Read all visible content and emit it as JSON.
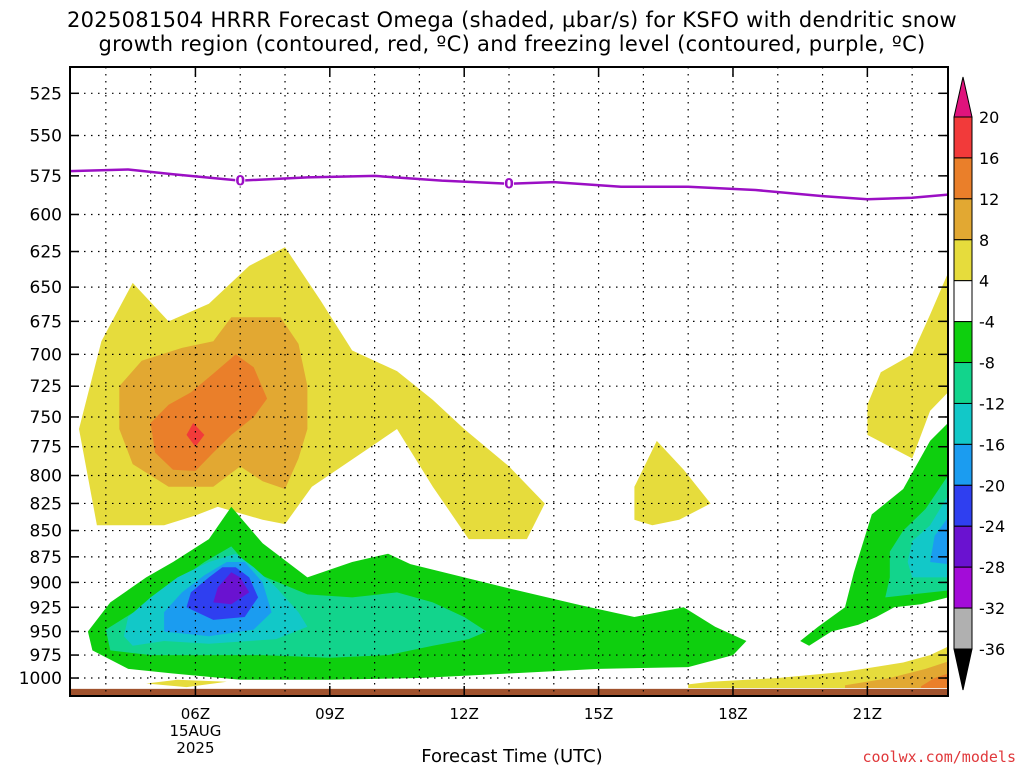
{
  "title": {
    "line1": "2025081504 HRRR Forecast Omega (shaded, µbar/s) for KSFO with dendritic snow",
    "line2": "growth region (contoured, red, ºC) and freezing level (contoured, purple, ºC)"
  },
  "xlabel": "Forecast Time (UTC)",
  "credit": "coolwx.com/models",
  "chart_data": {
    "type": "heatmap",
    "x_axis": {
      "ticks": [
        "06Z",
        "09Z",
        "12Z",
        "15Z",
        "18Z",
        "21Z"
      ],
      "date_label": [
        "15AUG",
        "2025"
      ],
      "range_hours": [
        3.2,
        22.8
      ]
    },
    "y_axis": {
      "ticks": [
        525,
        550,
        575,
        600,
        625,
        650,
        675,
        700,
        725,
        750,
        775,
        800,
        825,
        850,
        875,
        900,
        925,
        950,
        975,
        1000
      ],
      "range": [
        510,
        1020
      ],
      "scale": "log-pressure",
      "units": "hPa"
    },
    "grid": true,
    "colorbar": {
      "placement": "right",
      "labels": [
        "20",
        "16",
        "12",
        "8",
        "4",
        "-4",
        "-8",
        "-12",
        "-16",
        "-20",
        "-24",
        "-28",
        "-32",
        "-36"
      ],
      "levels": [
        {
          "min": 16,
          "max": 20,
          "color": "#f23a3a"
        },
        {
          "min": 12,
          "max": 16,
          "color": "#ea7f2a"
        },
        {
          "min": 8,
          "max": 12,
          "color": "#e2a832"
        },
        {
          "min": 4,
          "max": 8,
          "color": "#e6dc3c"
        },
        {
          "min": -4,
          "max": 4,
          "color": "#ffffff"
        },
        {
          "min": -8,
          "max": -4,
          "color": "#0ecf0e"
        },
        {
          "min": -12,
          "max": -8,
          "color": "#12d48c"
        },
        {
          "min": -16,
          "max": -12,
          "color": "#12c8c8"
        },
        {
          "min": -20,
          "max": -16,
          "color": "#1b9cf0"
        },
        {
          "min": -24,
          "max": -20,
          "color": "#2f3ff0"
        },
        {
          "min": -28,
          "max": -24,
          "color": "#6a12d0"
        },
        {
          "min": -32,
          "max": -28,
          "color": "#a30cd8"
        },
        {
          "min": -36,
          "max": -32,
          "color": "#b0b0b0"
        }
      ],
      "over_color": "#e0137c",
      "under_color": "#000000"
    },
    "freezing_level": {
      "color": "#9b0fc4",
      "contour_label": "0",
      "label_hours": [
        7.0,
        13.0
      ],
      "points": [
        [
          3.2,
          572
        ],
        [
          4.5,
          571
        ],
        [
          5.5,
          574
        ],
        [
          7.0,
          578
        ],
        [
          8.5,
          576
        ],
        [
          10.0,
          575
        ],
        [
          11.5,
          578
        ],
        [
          13.0,
          580
        ],
        [
          14.0,
          579
        ],
        [
          15.5,
          582
        ],
        [
          17.0,
          582
        ],
        [
          18.5,
          584
        ],
        [
          20.0,
          588
        ],
        [
          21.0,
          590
        ],
        [
          22.0,
          589
        ],
        [
          22.8,
          587
        ]
      ]
    },
    "omega_regions": [
      {
        "fill": "#e6dc3c",
        "points": [
          [
            5.3,
            845
          ],
          [
            6.0,
            836
          ],
          [
            6.5,
            828
          ],
          [
            7.5,
            840
          ],
          [
            8.0,
            844
          ],
          [
            8.6,
            810
          ],
          [
            10.5,
            760
          ],
          [
            11.3,
            810
          ],
          [
            12.1,
            858
          ],
          [
            13.4,
            858
          ],
          [
            13.8,
            825
          ],
          [
            13.0,
            792
          ],
          [
            12.0,
            760
          ],
          [
            11.3,
            736
          ],
          [
            10.5,
            713
          ],
          [
            9.5,
            697
          ],
          [
            8.8,
            660
          ],
          [
            8.0,
            622
          ],
          [
            7.2,
            635
          ],
          [
            6.3,
            662
          ],
          [
            5.4,
            675
          ],
          [
            4.6,
            647
          ],
          [
            3.9,
            690
          ],
          [
            3.4,
            760
          ],
          [
            3.8,
            845
          ]
        ]
      },
      {
        "fill": "#e6dc3c",
        "points": [
          [
            16.2,
            845
          ],
          [
            16.8,
            840
          ],
          [
            17.5,
            825
          ],
          [
            16.9,
            795
          ],
          [
            16.3,
            770
          ],
          [
            15.8,
            810
          ],
          [
            15.8,
            840
          ]
        ]
      },
      {
        "fill": "#e6dc3c",
        "points": [
          [
            22.0,
            785
          ],
          [
            22.4,
            745
          ],
          [
            22.8,
            730
          ],
          [
            22.8,
            640
          ],
          [
            22.4,
            670
          ],
          [
            22.0,
            700
          ],
          [
            21.3,
            714
          ],
          [
            21.0,
            740
          ],
          [
            21.0,
            765
          ]
        ]
      },
      {
        "fill": "#e2a832",
        "points": [
          [
            5.4,
            810
          ],
          [
            6.4,
            810
          ],
          [
            7.0,
            792
          ],
          [
            7.5,
            805
          ],
          [
            8.0,
            812
          ],
          [
            8.3,
            785
          ],
          [
            8.5,
            760
          ],
          [
            8.5,
            725
          ],
          [
            8.3,
            692
          ],
          [
            7.9,
            672
          ],
          [
            6.8,
            672
          ],
          [
            6.4,
            690
          ],
          [
            5.7,
            695
          ],
          [
            4.8,
            705
          ],
          [
            4.3,
            725
          ],
          [
            4.3,
            760
          ],
          [
            4.6,
            790
          ]
        ]
      },
      {
        "fill": "#ea7f2a",
        "points": [
          [
            5.5,
            795
          ],
          [
            6.0,
            796
          ],
          [
            6.4,
            780
          ],
          [
            6.8,
            765
          ],
          [
            7.3,
            750
          ],
          [
            7.6,
            735
          ],
          [
            7.3,
            710
          ],
          [
            6.9,
            700
          ],
          [
            6.4,
            715
          ],
          [
            5.9,
            730
          ],
          [
            5.4,
            740
          ],
          [
            5.0,
            755
          ],
          [
            5.1,
            780
          ]
        ]
      },
      {
        "fill": "#f23a3a",
        "points": [
          [
            6.0,
            775
          ],
          [
            6.2,
            765
          ],
          [
            5.95,
            755
          ],
          [
            5.8,
            765
          ]
        ]
      },
      {
        "fill": "#0ecf0e",
        "points": [
          [
            3.7,
            970
          ],
          [
            3.6,
            950
          ],
          [
            4.1,
            920
          ],
          [
            4.9,
            895
          ],
          [
            5.5,
            880
          ],
          [
            6.3,
            858
          ],
          [
            6.8,
            828
          ],
          [
            7.5,
            862
          ],
          [
            8.5,
            895
          ],
          [
            9.5,
            880
          ],
          [
            10.3,
            872
          ],
          [
            10.8,
            882
          ],
          [
            12.0,
            895
          ],
          [
            13.0,
            906
          ],
          [
            14.6,
            923
          ],
          [
            15.8,
            935
          ],
          [
            16.9,
            925
          ],
          [
            17.6,
            945
          ],
          [
            18.3,
            960
          ],
          [
            18.0,
            975
          ],
          [
            17.0,
            988
          ],
          [
            15.0,
            990
          ],
          [
            13.0,
            995
          ],
          [
            11.0,
            1000
          ],
          [
            9.0,
            1002
          ],
          [
            7.0,
            1002
          ],
          [
            5.5,
            995
          ],
          [
            4.5,
            990
          ]
        ]
      },
      {
        "fill": "#0ecf0e",
        "points": [
          [
            19.7,
            965
          ],
          [
            20.2,
            950
          ],
          [
            20.8,
            943
          ],
          [
            21.2,
            935
          ],
          [
            21.6,
            925
          ],
          [
            22.2,
            922
          ],
          [
            22.8,
            915
          ],
          [
            22.8,
            755
          ],
          [
            22.4,
            770
          ],
          [
            21.8,
            812
          ],
          [
            21.1,
            835
          ],
          [
            20.7,
            890
          ],
          [
            20.5,
            925
          ],
          [
            19.9,
            945
          ],
          [
            19.5,
            960
          ]
        ]
      },
      {
        "fill": "#12d48c",
        "points": [
          [
            4.1,
            970
          ],
          [
            4.0,
            948
          ],
          [
            4.8,
            925
          ],
          [
            5.4,
            905
          ],
          [
            6.2,
            880
          ],
          [
            6.8,
            865
          ],
          [
            7.3,
            890
          ],
          [
            8.5,
            912
          ],
          [
            9.5,
            915
          ],
          [
            10.5,
            910
          ],
          [
            11.3,
            920
          ],
          [
            12.0,
            935
          ],
          [
            12.5,
            950
          ],
          [
            12.1,
            958
          ],
          [
            11.3,
            965
          ],
          [
            10.3,
            975
          ],
          [
            9.0,
            978
          ],
          [
            7.5,
            975
          ],
          [
            6.0,
            975
          ],
          [
            5.0,
            975
          ]
        ]
      },
      {
        "fill": "#12d48c",
        "points": [
          [
            21.4,
            915
          ],
          [
            22.0,
            912
          ],
          [
            22.8,
            908
          ],
          [
            22.8,
            800
          ],
          [
            22.3,
            830
          ],
          [
            21.8,
            850
          ],
          [
            21.5,
            870
          ],
          [
            21.5,
            895
          ]
        ]
      },
      {
        "fill": "#12c8c8",
        "points": [
          [
            4.6,
            965
          ],
          [
            5.3,
            960
          ],
          [
            6.3,
            963
          ],
          [
            7.2,
            960
          ],
          [
            7.8,
            958
          ],
          [
            8.5,
            945
          ],
          [
            8.3,
            930
          ],
          [
            7.8,
            905
          ],
          [
            7.3,
            885
          ],
          [
            6.9,
            872
          ],
          [
            6.3,
            880
          ],
          [
            5.6,
            895
          ],
          [
            5.0,
            915
          ],
          [
            4.5,
            935
          ],
          [
            4.4,
            955
          ]
        ]
      },
      {
        "fill": "#12c8c8",
        "points": [
          [
            22.0,
            895
          ],
          [
            22.8,
            895
          ],
          [
            22.8,
            818
          ],
          [
            22.4,
            845
          ],
          [
            22.0,
            860
          ],
          [
            21.9,
            880
          ]
        ]
      },
      {
        "fill": "#1b9cf0",
        "points": [
          [
            5.3,
            950
          ],
          [
            6.3,
            955
          ],
          [
            7.3,
            948
          ],
          [
            7.7,
            930
          ],
          [
            7.5,
            900
          ],
          [
            7.1,
            880
          ],
          [
            6.7,
            880
          ],
          [
            6.2,
            893
          ],
          [
            5.7,
            910
          ],
          [
            5.3,
            930
          ]
        ]
      },
      {
        "fill": "#1b9cf0",
        "points": [
          [
            22.4,
            880
          ],
          [
            22.8,
            882
          ],
          [
            22.8,
            838
          ],
          [
            22.5,
            855
          ]
        ]
      },
      {
        "fill": "#2f3ff0",
        "points": [
          [
            5.8,
            925
          ],
          [
            6.4,
            938
          ],
          [
            7.1,
            935
          ],
          [
            7.4,
            915
          ],
          [
            7.2,
            895
          ],
          [
            6.9,
            885
          ],
          [
            6.6,
            885
          ],
          [
            6.3,
            895
          ],
          [
            5.9,
            910
          ]
        ]
      },
      {
        "fill": "#6a12d0",
        "points": [
          [
            6.4,
            920
          ],
          [
            6.8,
            922
          ],
          [
            7.2,
            910
          ],
          [
            7.0,
            895
          ],
          [
            6.8,
            890
          ],
          [
            6.5,
            905
          ]
        ]
      },
      {
        "fill": "#e6dc3c",
        "points": [
          [
            17.0,
            1007
          ],
          [
            17.5,
            1004
          ],
          [
            19.0,
            1000
          ],
          [
            20.5,
            993
          ],
          [
            21.8,
            983
          ],
          [
            22.4,
            975
          ],
          [
            22.8,
            966
          ],
          [
            22.8,
            1011
          ],
          [
            17.0,
            1011
          ]
        ]
      },
      {
        "fill": "#e2a832",
        "points": [
          [
            20.5,
            1008
          ],
          [
            21.5,
            1000
          ],
          [
            22.3,
            990
          ],
          [
            22.8,
            982
          ],
          [
            22.8,
            1011
          ],
          [
            20.5,
            1011
          ]
        ]
      },
      {
        "fill": "#ea7f2a",
        "points": [
          [
            22.2,
            1009
          ],
          [
            22.5,
            1000
          ],
          [
            22.8,
            995
          ],
          [
            22.8,
            1011
          ],
          [
            22.2,
            1011
          ]
        ]
      },
      {
        "fill": "#e6dc3c",
        "points": [
          [
            4.9,
            1006
          ],
          [
            5.6,
            1002
          ],
          [
            6.7,
            1004
          ],
          [
            5.8,
            1010
          ]
        ]
      }
    ],
    "terrain_color": "#a0522d",
    "terrain_top_hpa": 1012
  }
}
